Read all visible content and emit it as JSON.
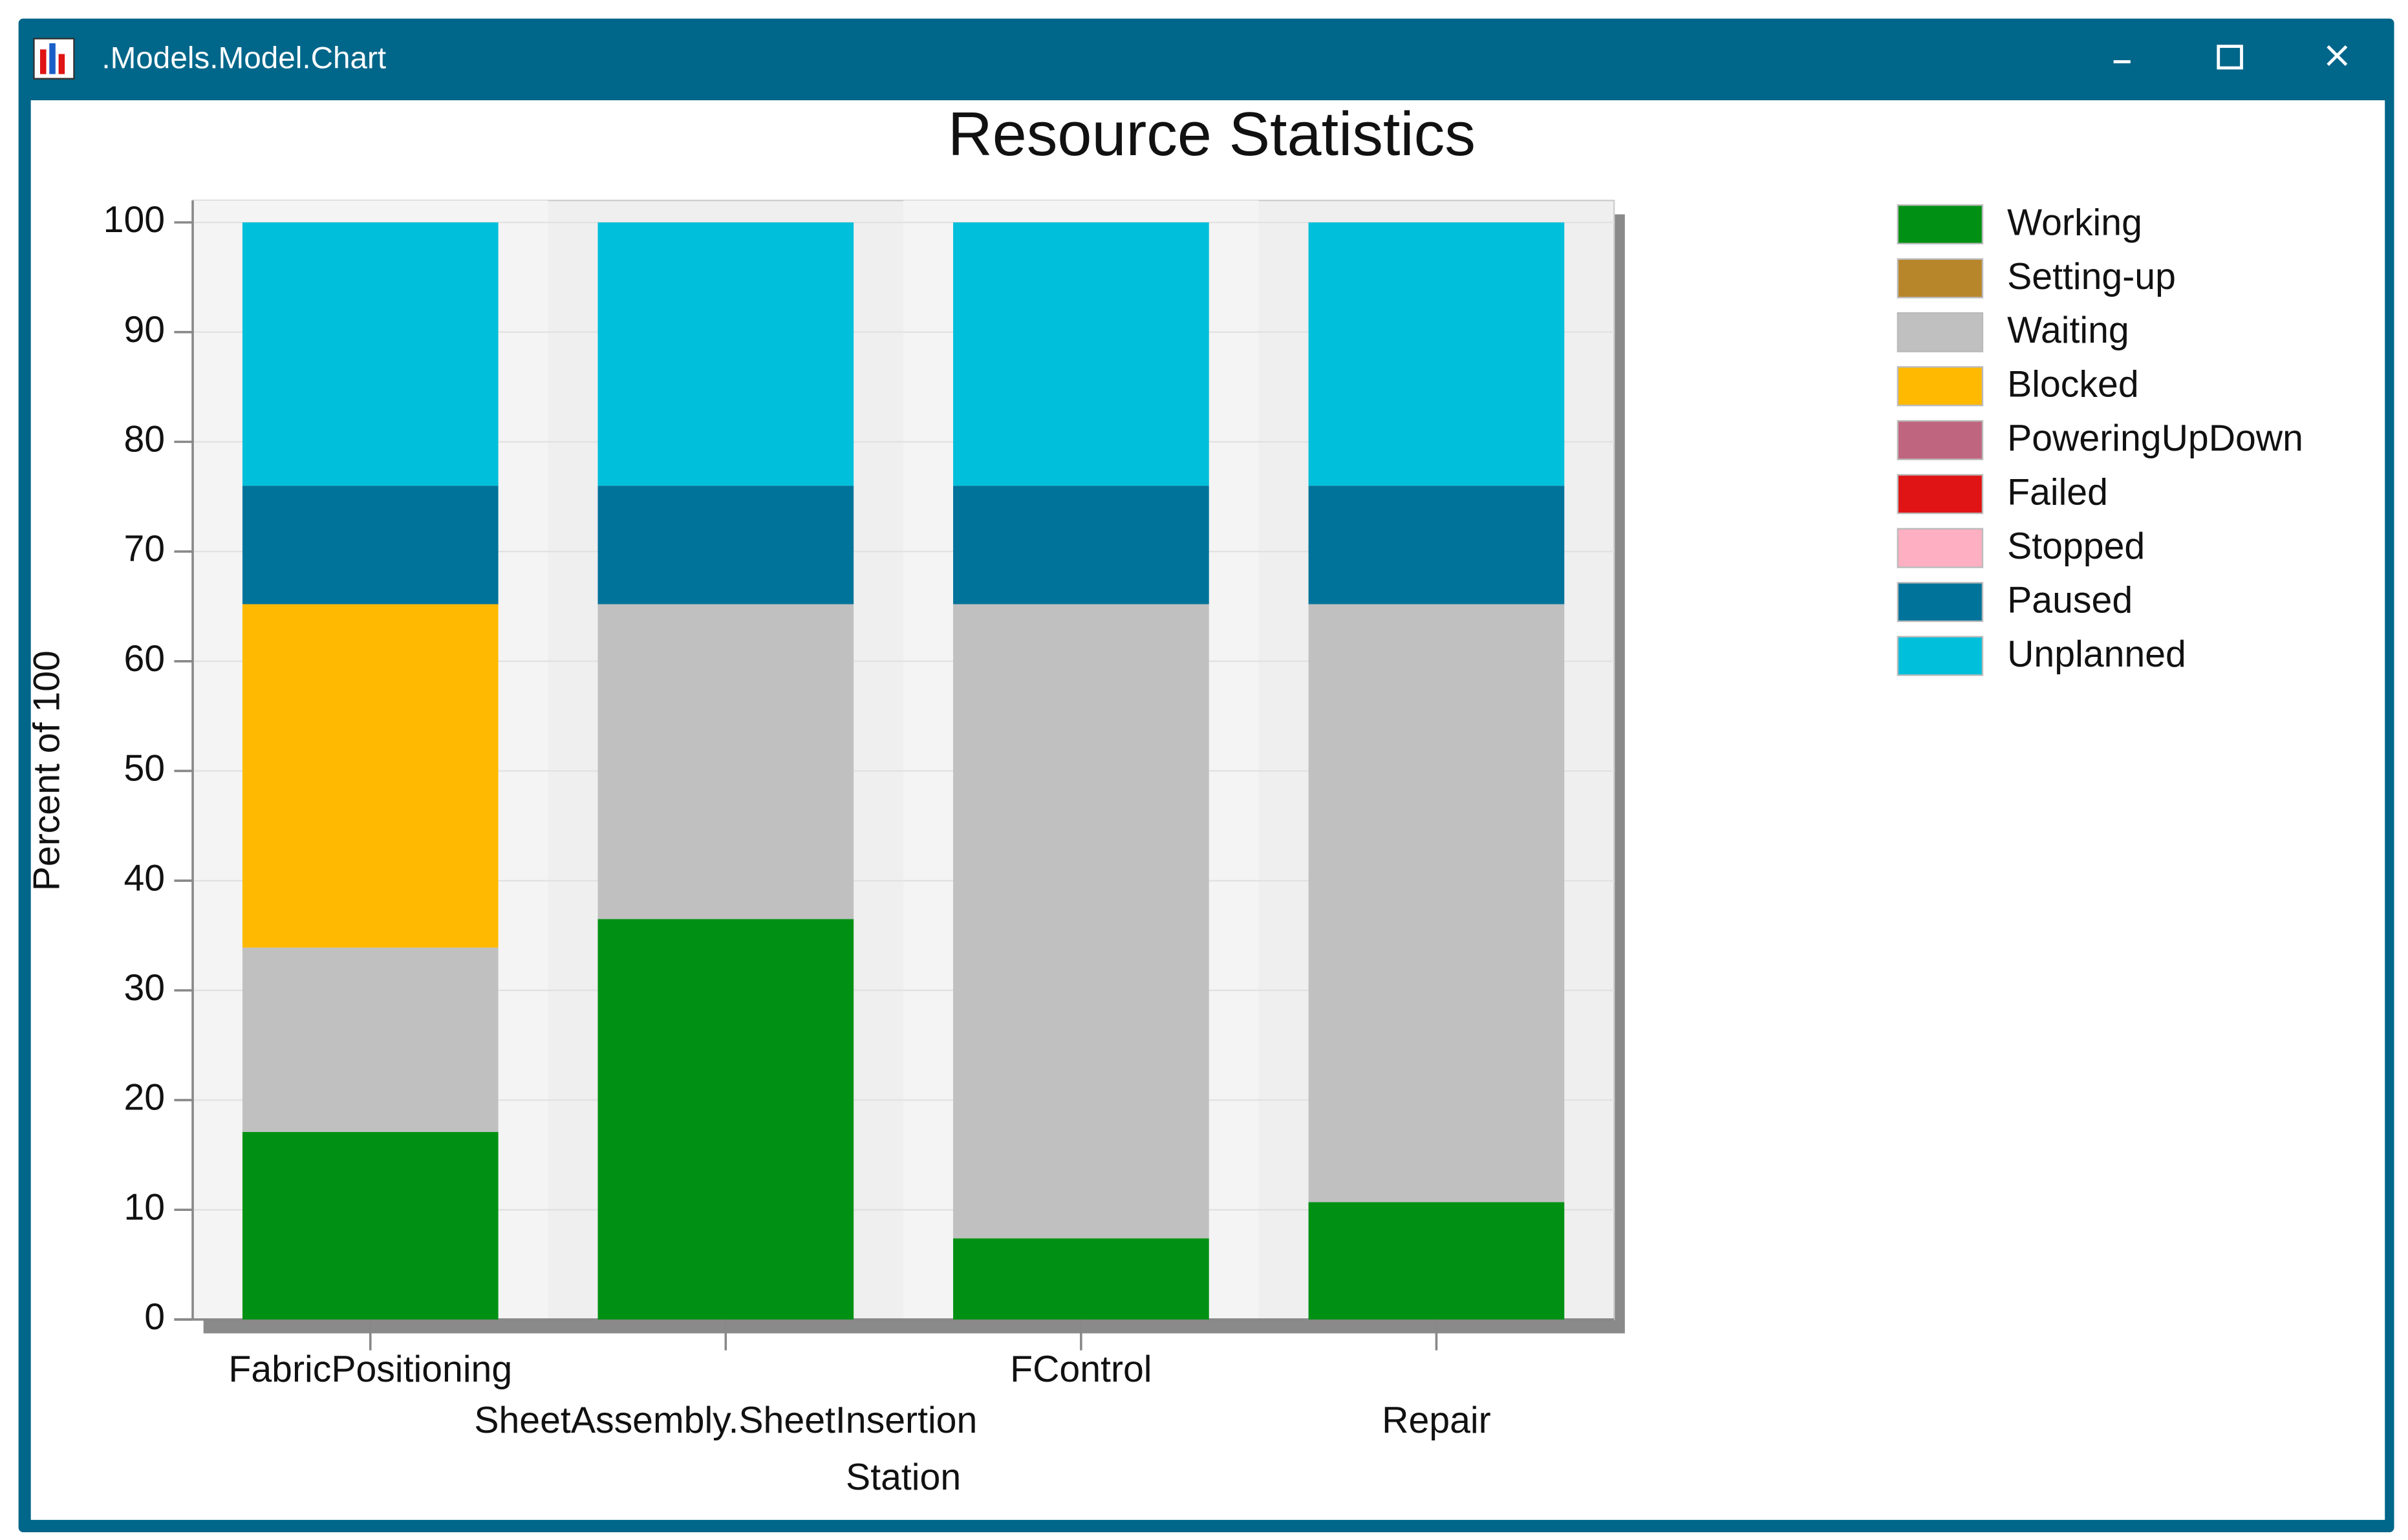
{
  "window": {
    "title": ".Models.Model.Chart"
  },
  "chart_data": {
    "type": "stacked-bar",
    "title": "Resource Statistics",
    "x_label": "Station",
    "y_label": "Percent of 100",
    "categories": [
      "FabricPositioning",
      "SheetAssembly.SheetInsertion",
      "FControl",
      "Repair"
    ],
    "series": [
      {
        "name": "Working",
        "color": "#009114",
        "values": [
          17.1,
          36.5,
          7.4,
          10.7
        ]
      },
      {
        "name": "Setting-up",
        "color": "#b8862a",
        "values": [
          0,
          0,
          0,
          0
        ]
      },
      {
        "name": "Waiting",
        "color": "#c0c0c0",
        "values": [
          16.8,
          28.7,
          57.8,
          54.5
        ]
      },
      {
        "name": "Blocked",
        "color": "#ffb900",
        "values": [
          31.3,
          0,
          0,
          0
        ]
      },
      {
        "name": "PoweringUpDown",
        "color": "#c0657f",
        "values": [
          0,
          0,
          0,
          0
        ]
      },
      {
        "name": "Failed",
        "color": "#e01414",
        "values": [
          0,
          0,
          0,
          0
        ]
      },
      {
        "name": "Stopped",
        "color": "#ffafc2",
        "values": [
          0,
          0,
          0,
          0
        ]
      },
      {
        "name": "Paused",
        "color": "#00739a",
        "values": [
          10.8,
          10.8,
          10.8,
          10.8
        ]
      },
      {
        "name": "Unplanned",
        "color": "#00bfda",
        "values": [
          24,
          24,
          24,
          24
        ]
      }
    ],
    "ylim": [
      0,
      102
    ],
    "yticks": [
      0,
      10,
      20,
      30,
      40,
      50,
      60,
      70,
      80,
      90,
      100
    ],
    "grid": true,
    "legend": "right"
  }
}
